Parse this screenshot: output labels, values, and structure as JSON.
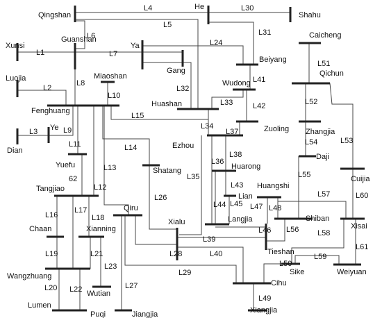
{
  "buses": [
    "Qingshan",
    "He",
    "Shahu",
    "Guanshan",
    "Xunsi",
    "Ya",
    "Caicheng",
    "Beiyang",
    "Gang",
    "Qichun",
    "Miaoshan",
    "Luojia",
    "Wudong",
    "Huashan",
    "Fenghuang",
    "Zuoling",
    "Zhangjia",
    "Ye",
    "Dian",
    "Ezhou",
    "Daji",
    "Yuefu",
    "Shatang",
    "Huarong",
    "Cuijia",
    "Tangjiao",
    "Lian",
    "Huangshi",
    "Qiru",
    "Shiban",
    "Xisai",
    "Langjia",
    "Xialu",
    "Tieshan",
    "Chaan",
    "Xianning",
    "Wangzhuang",
    "Sike",
    "Weiyuan",
    "Wutian",
    "Cihu",
    "Lumen",
    "Puqi",
    "Jiangjia",
    "Xiangjia"
  ],
  "lines": [
    "L4",
    "L30",
    "L5",
    "L6",
    "L31",
    "L24",
    "L1",
    "L7",
    "L41",
    "L8",
    "L2",
    "L10",
    "L32",
    "L33",
    "L42",
    "L51",
    "L52",
    "L15",
    "L34",
    "L37",
    "L3",
    "L9",
    "L53",
    "L54",
    "L11",
    "L14",
    "L38",
    "L36",
    "L13",
    "L35",
    "62",
    "L12",
    "L55",
    "L43",
    "L60",
    "L57",
    "L26",
    "L45",
    "L44",
    "L47",
    "L48",
    "L16",
    "L17",
    "L18",
    "L56",
    "L58",
    "L46",
    "L39",
    "L19",
    "L21",
    "L28",
    "L40",
    "L61",
    "L50",
    "L59",
    "L23",
    "L29",
    "L20",
    "L22",
    "L27",
    "L49"
  ]
}
